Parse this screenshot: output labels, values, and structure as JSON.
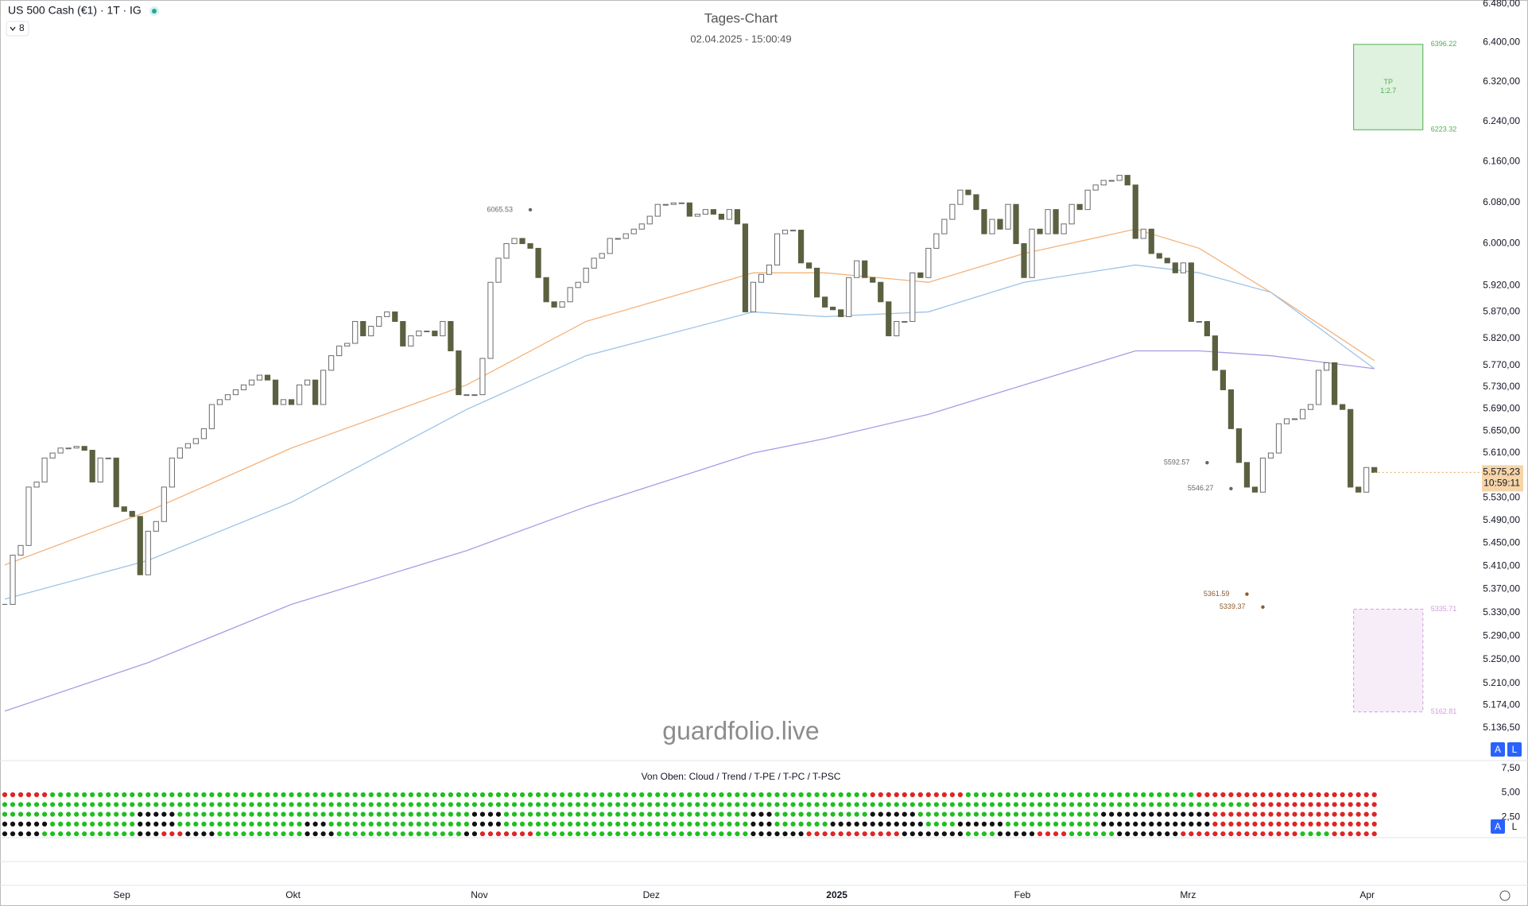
{
  "chart_data": [
    {
      "type": "candlestick",
      "title": "Tages-Chart",
      "subtitle": "02.04.2025 - 15:00:49",
      "symbol": "US 500 Cash (€1) · 1T · IG",
      "interval_badge": "8",
      "watermark": "guardfolio.live",
      "closes": [
        5344,
        5429,
        5446,
        5549,
        5558,
        5601,
        5610,
        5619,
        5619,
        5622,
        5615,
        5558,
        5601,
        5601,
        5514,
        5506,
        5497,
        5395,
        5471,
        5488,
        5549,
        5601,
        5619,
        5627,
        5636,
        5654,
        5698,
        5707,
        5716,
        5725,
        5734,
        5743,
        5752,
        5743,
        5698,
        5707,
        5698,
        5734,
        5743,
        5698,
        5761,
        5788,
        5806,
        5811,
        5852,
        5825,
        5843,
        5861,
        5870,
        5852,
        5806,
        5825,
        5834,
        5834,
        5825,
        5852,
        5797,
        5716,
        5716,
        5716,
        5783,
        5926,
        5972,
        6000,
        6010,
        6000,
        5991,
        5935,
        5889,
        5879,
        5889,
        5916,
        5926,
        5953,
        5972,
        5981,
        6010,
        6010,
        6019,
        6028,
        6038,
        6053,
        6076,
        6076,
        6079,
        6079,
        6053,
        6057,
        6066,
        6057,
        6047,
        6066,
        6038,
        5870,
        5926,
        5941,
        5959,
        6019,
        6026,
        6026,
        5963,
        5953,
        5898,
        5879,
        5874,
        5861,
        5935,
        5967,
        5935,
        5926,
        5889,
        5825,
        5852,
        5852,
        5944,
        5935,
        5991,
        6019,
        6047,
        6076,
        6104,
        6095,
        6066,
        6019,
        6047,
        6028,
        6076,
        6000,
        5935,
        6028,
        6019,
        6066,
        6019,
        6038,
        6076,
        6066,
        6104,
        6114,
        6123,
        6123,
        6133,
        6114,
        6010,
        6028,
        5981,
        5972,
        5963,
        5944,
        5963,
        5852,
        5852,
        5825,
        5761,
        5725,
        5654,
        5593,
        5549,
        5540,
        5601,
        5610,
        5663,
        5672,
        5672,
        5689,
        5698,
        5761,
        5775,
        5698,
        5689,
        5549,
        5540,
        5584,
        5575.23
      ],
      "up_color": "#ffffff",
      "down_color": "#5b6140",
      "overlays": [
        {
          "color": "#f5b27a",
          "x": [
            0,
            18,
            36,
            58,
            73,
            94,
            103,
            116,
            128,
            142,
            150,
            159,
            172
          ],
          "values": [
            5412,
            5506,
            5619,
            5734,
            5852,
            5944,
            5944,
            5926,
            5981,
            6028,
            5991,
            5907,
            5779
          ]
        },
        {
          "color": "#9ec3e6",
          "x": [
            0,
            18,
            36,
            58,
            73,
            94,
            103,
            116,
            128,
            142,
            150,
            159,
            172
          ],
          "values": [
            5353,
            5420,
            5522,
            5689,
            5788,
            5870,
            5861,
            5870,
            5926,
            5959,
            5944,
            5907,
            5764
          ]
        },
        {
          "color": "#a99be6",
          "x": [
            0,
            18,
            36,
            58,
            73,
            94,
            103,
            116,
            128,
            142,
            150,
            159,
            172
          ],
          "values": [
            5164,
            5245,
            5344,
            5437,
            5514,
            5610,
            5636,
            5680,
            5734,
            5797,
            5797,
            5788,
            5764
          ]
        }
      ],
      "log_scale": true,
      "grid": false,
      "ylim": [
        5084,
        6488
      ],
      "yticks": [
        {
          "value": 6480,
          "label": "6.480,00"
        },
        {
          "value": 6400,
          "label": "6.400,00"
        },
        {
          "value": 6320,
          "label": "6.320,00"
        },
        {
          "value": 6240,
          "label": "6.240,00"
        },
        {
          "value": 6160,
          "label": "6.160,00"
        },
        {
          "value": 6080,
          "label": "6.080,00"
        },
        {
          "value": 6000,
          "label": "6.000,00"
        },
        {
          "value": 5920,
          "label": "5.920,00"
        },
        {
          "value": 5870,
          "label": "5.870,00"
        },
        {
          "value": 5820,
          "label": "5.820,00"
        },
        {
          "value": 5770,
          "label": "5.770,00"
        },
        {
          "value": 5730,
          "label": "5.730,00"
        },
        {
          "value": 5690,
          "label": "5.690,00"
        },
        {
          "value": 5650,
          "label": "5.650,00"
        },
        {
          "value": 5610,
          "label": "5.610,00"
        },
        {
          "value": 5530,
          "label": "5.530,00"
        },
        {
          "value": 5490,
          "label": "5.490,00"
        },
        {
          "value": 5450,
          "label": "5.450,00"
        },
        {
          "value": 5410,
          "label": "5.410,00"
        },
        {
          "value": 5370,
          "label": "5.370,00"
        },
        {
          "value": 5330,
          "label": "5.330,00"
        },
        {
          "value": 5290,
          "label": "5.290,00"
        },
        {
          "value": 5250,
          "label": "5.250,00"
        },
        {
          "value": 5210,
          "label": "5.210,00"
        },
        {
          "value": 5174,
          "label": "5.174,00"
        },
        {
          "value": 5136.5,
          "label": "5.136,50"
        }
      ],
      "xlim": [
        -0.6,
        191.3
      ],
      "xticks": [
        {
          "value": 14.7,
          "label": "Sep"
        },
        {
          "value": 36.2,
          "label": "Okt"
        },
        {
          "value": 59.6,
          "label": "Nov"
        },
        {
          "value": 81.2,
          "label": "Dez"
        },
        {
          "value": 104.5,
          "label": "2025"
        },
        {
          "value": 127.8,
          "label": "Feb"
        },
        {
          "value": 148.6,
          "label": "Mrz"
        },
        {
          "value": 171.1,
          "label": "Apr"
        }
      ],
      "last_price": {
        "value": 5575.23,
        "label": "5.575,23",
        "countdown": "10:59:11",
        "color": "#f7d5a8"
      },
      "annotations": [
        {
          "x": 66,
          "value": 6065.53,
          "color": "#666666"
        },
        {
          "x": 151,
          "value": 5592.57,
          "color": "#666666"
        },
        {
          "x": 154,
          "value": 5546.27,
          "color": "#666666"
        },
        {
          "x": 156,
          "value": 5361.59,
          "color": "#8b5a2b"
        },
        {
          "x": 158,
          "value": 5339.37,
          "color": "#8b5a2b"
        }
      ],
      "tp_box": {
        "top": 6396.22,
        "bottom": 6223.32,
        "label": "TP",
        "ratio": "1:2.7",
        "x": [
          169.4,
          178.1
        ],
        "color": "#4caf50"
      },
      "sl_box": {
        "top": 5335.71,
        "bottom": 5162.81,
        "x": [
          169.4,
          178.1
        ],
        "color": "#d39be0"
      },
      "buttons": [
        "A",
        "L"
      ]
    },
    {
      "type": "dots",
      "title": "Von Oben: Cloud / Trend / T-PE / T-PC / T-PSC",
      "ylim": [
        0.4,
        8.3
      ],
      "yticks": [
        {
          "value": 7.5,
          "label": "7,50"
        },
        {
          "value": 5,
          "label": "5,00"
        },
        {
          "value": 2.5,
          "label": "2,50"
        }
      ],
      "dot_colors": {
        "g": "#1fbf1f",
        "r": "#e02424",
        "k": "#111111"
      },
      "rows": [
        [
          [
            "r",
            6
          ],
          [
            "g",
            103
          ],
          [
            "r",
            12
          ],
          [
            "g",
            29
          ],
          [
            "r",
            23
          ]
        ],
        [
          [
            "g",
            157
          ],
          [
            "r",
            16
          ]
        ],
        [
          [
            "g",
            17
          ],
          [
            "k",
            5
          ],
          [
            "g",
            37
          ],
          [
            "k",
            4
          ],
          [
            "g",
            31
          ],
          [
            "k",
            3
          ],
          [
            "g",
            12
          ],
          [
            "k",
            6
          ],
          [
            "g",
            23
          ],
          [
            "k",
            14
          ],
          [
            "r",
            21
          ]
        ],
        [
          [
            "k",
            6
          ],
          [
            "g",
            11
          ],
          [
            "k",
            5
          ],
          [
            "g",
            16
          ],
          [
            "k",
            3
          ],
          [
            "g",
            18
          ],
          [
            "k",
            4
          ],
          [
            "g",
            31
          ],
          [
            "k",
            3
          ],
          [
            "g",
            7
          ],
          [
            "k",
            12
          ],
          [
            "g",
            4
          ],
          [
            "k",
            6
          ],
          [
            "g",
            12
          ],
          [
            "k",
            14
          ],
          [
            "r",
            21
          ]
        ],
        [
          [
            "k",
            5
          ],
          [
            "g",
            12
          ],
          [
            "k",
            3
          ],
          [
            "r",
            3
          ],
          [
            "k",
            4
          ],
          [
            "g",
            11
          ],
          [
            "k",
            4
          ],
          [
            "g",
            16
          ],
          [
            "k",
            2
          ],
          [
            "r",
            7
          ],
          [
            "g",
            27
          ],
          [
            "k",
            7
          ],
          [
            "r",
            12
          ],
          [
            "k",
            8
          ],
          [
            "g",
            4
          ],
          [
            "k",
            5
          ],
          [
            "r",
            4
          ],
          [
            "g",
            6
          ],
          [
            "k",
            8
          ],
          [
            "r",
            15
          ],
          [
            "g",
            4
          ],
          [
            "r",
            6
          ]
        ]
      ],
      "buttons": [
        "A",
        "L"
      ]
    }
  ]
}
